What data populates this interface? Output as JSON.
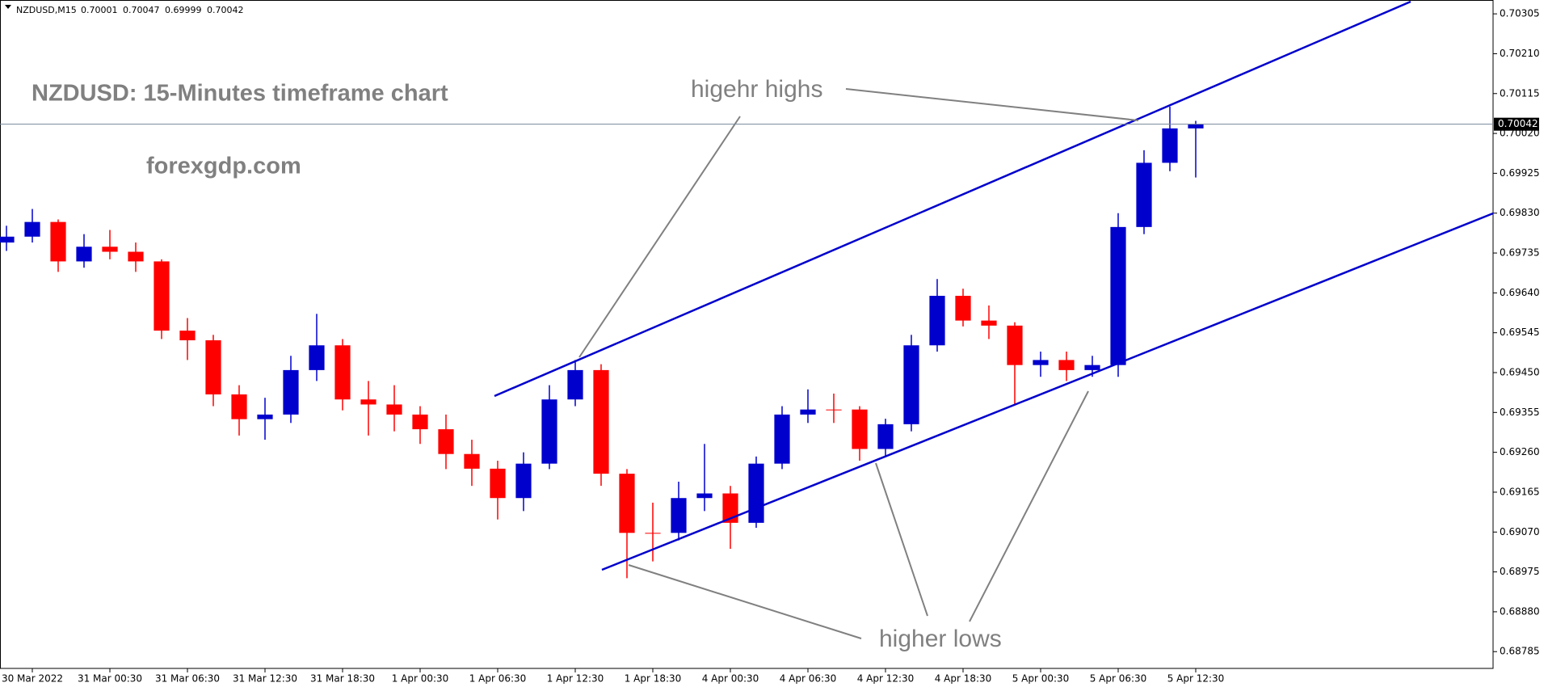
{
  "chart_data": {
    "type": "candlestick",
    "header": "NZDUSD,M15",
    "header_values": [
      0.70001,
      0.70047,
      0.69999,
      0.70042
    ],
    "title": "NZDUSD: 15-Minutes timeframe chart",
    "subtitle": "forexgdp.com",
    "annotations": [
      "higehr highs",
      "higher lows"
    ],
    "up_color": "#0000cd",
    "down_color": "#ff0000",
    "current_price": 0.70042,
    "x": [
      -8,
      -6,
      -4,
      -2,
      0,
      2,
      4,
      6,
      8,
      10,
      12,
      14,
      16,
      18,
      20,
      22,
      24,
      26,
      28,
      30,
      32,
      34,
      36,
      38,
      40,
      42,
      44,
      46,
      48,
      50,
      52,
      54,
      56,
      58,
      60,
      62,
      64,
      66,
      68,
      70,
      72,
      74,
      76,
      78,
      80,
      82,
      84
    ],
    "open": [
      0.6976,
      0.69774,
      0.69809,
      0.69715,
      0.6975,
      0.69738,
      0.69715,
      0.6955,
      0.69527,
      0.69398,
      0.69339,
      0.6935,
      0.69456,
      0.69515,
      0.69386,
      0.69374,
      0.6935,
      0.69315,
      0.69256,
      0.69221,
      0.69151,
      0.69233,
      0.69386,
      0.69456,
      0.69209,
      0.69068,
      0.69068,
      0.69151,
      0.69162,
      0.69092,
      0.69233,
      0.6935,
      0.69362,
      0.69362,
      0.69268,
      0.69327,
      0.69515,
      0.69633,
      0.69574,
      0.69562,
      0.69468,
      0.6948,
      0.69456,
      0.69468,
      0.69797,
      0.6995,
      0.70032
    ],
    "high": [
      0.698,
      0.6984,
      0.69815,
      0.6978,
      0.6979,
      0.6976,
      0.6972,
      0.6958,
      0.6954,
      0.6942,
      0.6939,
      0.6949,
      0.6959,
      0.6953,
      0.6943,
      0.6942,
      0.6937,
      0.6935,
      0.6929,
      0.6924,
      0.6926,
      0.6942,
      0.6948,
      0.6947,
      0.6922,
      0.6914,
      0.6919,
      0.6928,
      0.6918,
      0.6925,
      0.6937,
      0.6941,
      0.694,
      0.6937,
      0.6934,
      0.6954,
      0.69673,
      0.6965,
      0.6961,
      0.6957,
      0.695,
      0.695,
      0.6949,
      0.6983,
      0.6998,
      0.70084,
      0.7005
    ],
    "low": [
      0.6974,
      0.6976,
      0.6969,
      0.697,
      0.6972,
      0.6969,
      0.6953,
      0.6948,
      0.6937,
      0.693,
      0.6929,
      0.6933,
      0.6943,
      0.6936,
      0.693,
      0.6931,
      0.6928,
      0.6922,
      0.6918,
      0.691,
      0.6912,
      0.6922,
      0.6937,
      0.6918,
      0.6896,
      0.69,
      0.6905,
      0.6912,
      0.6903,
      0.6908,
      0.6922,
      0.6933,
      0.6933,
      0.6924,
      0.6925,
      0.6931,
      0.695,
      0.6956,
      0.6953,
      0.69374,
      0.6944,
      0.6943,
      0.6944,
      0.6944,
      0.6978,
      0.6993,
      0.69915
    ],
    "close": [
      0.69774,
      0.69809,
      0.69715,
      0.6975,
      0.69738,
      0.69715,
      0.6955,
      0.69527,
      0.69398,
      0.69339,
      0.6935,
      0.69456,
      0.69515,
      0.69386,
      0.69374,
      0.6935,
      0.69315,
      0.69256,
      0.69221,
      0.69151,
      0.69233,
      0.69386,
      0.69456,
      0.69209,
      0.69068,
      0.69068,
      0.69151,
      0.69162,
      0.69092,
      0.69233,
      0.6935,
      0.69362,
      0.69362,
      0.69268,
      0.69327,
      0.69515,
      0.69633,
      0.69574,
      0.69562,
      0.69468,
      0.6948,
      0.69456,
      0.69468,
      0.69797,
      0.6995,
      0.70032,
      0.70042
    ],
    "xlim": [
      -8.5,
      107
    ],
    "xticks": [
      {
        "value": -6,
        "label": "30 Mar 2022"
      },
      {
        "value": 0,
        "label": "31 Mar 00:30"
      },
      {
        "value": 6,
        "label": "31 Mar 06:30"
      },
      {
        "value": 12,
        "label": "31 Mar 12:30"
      },
      {
        "value": 18,
        "label": "31 Mar 18:30"
      },
      {
        "value": 24,
        "label": "1 Apr 00:30"
      },
      {
        "value": 30,
        "label": "1 Apr 06:30"
      },
      {
        "value": 36,
        "label": "1 Apr 12:30"
      },
      {
        "value": 42,
        "label": "1 Apr 18:30"
      },
      {
        "value": 48,
        "label": "4 Apr 00:30"
      },
      {
        "value": 54,
        "label": "4 Apr 06:30"
      },
      {
        "value": 60,
        "label": "4 Apr 12:30"
      },
      {
        "value": 66,
        "label": "4 Apr 18:30"
      },
      {
        "value": 72,
        "label": "5 Apr 00:30"
      },
      {
        "value": 78,
        "label": "5 Apr 06:30"
      },
      {
        "value": 84,
        "label": "5 Apr 12:30"
      }
    ],
    "ylim": [
      0.68745,
      0.70338
    ],
    "yticks": [
      0.70305,
      {
        "value": 0.7021,
        "label": "0.70210"
      },
      0.70115,
      {
        "value": 0.7002,
        "label": "0.70020"
      },
      0.69925,
      {
        "value": 0.6983,
        "label": "0.69830"
      },
      0.69735,
      {
        "value": 0.6964,
        "label": "0.69640"
      },
      0.69545,
      {
        "value": 0.6945,
        "label": "0.69450"
      },
      0.69355,
      {
        "value": 0.6926,
        "label": "0.69260"
      },
      0.69165,
      {
        "value": 0.6907,
        "label": "0.69070"
      },
      0.68975,
      {
        "value": 0.6888,
        "label": "0.68880"
      },
      0.68785
    ]
  }
}
